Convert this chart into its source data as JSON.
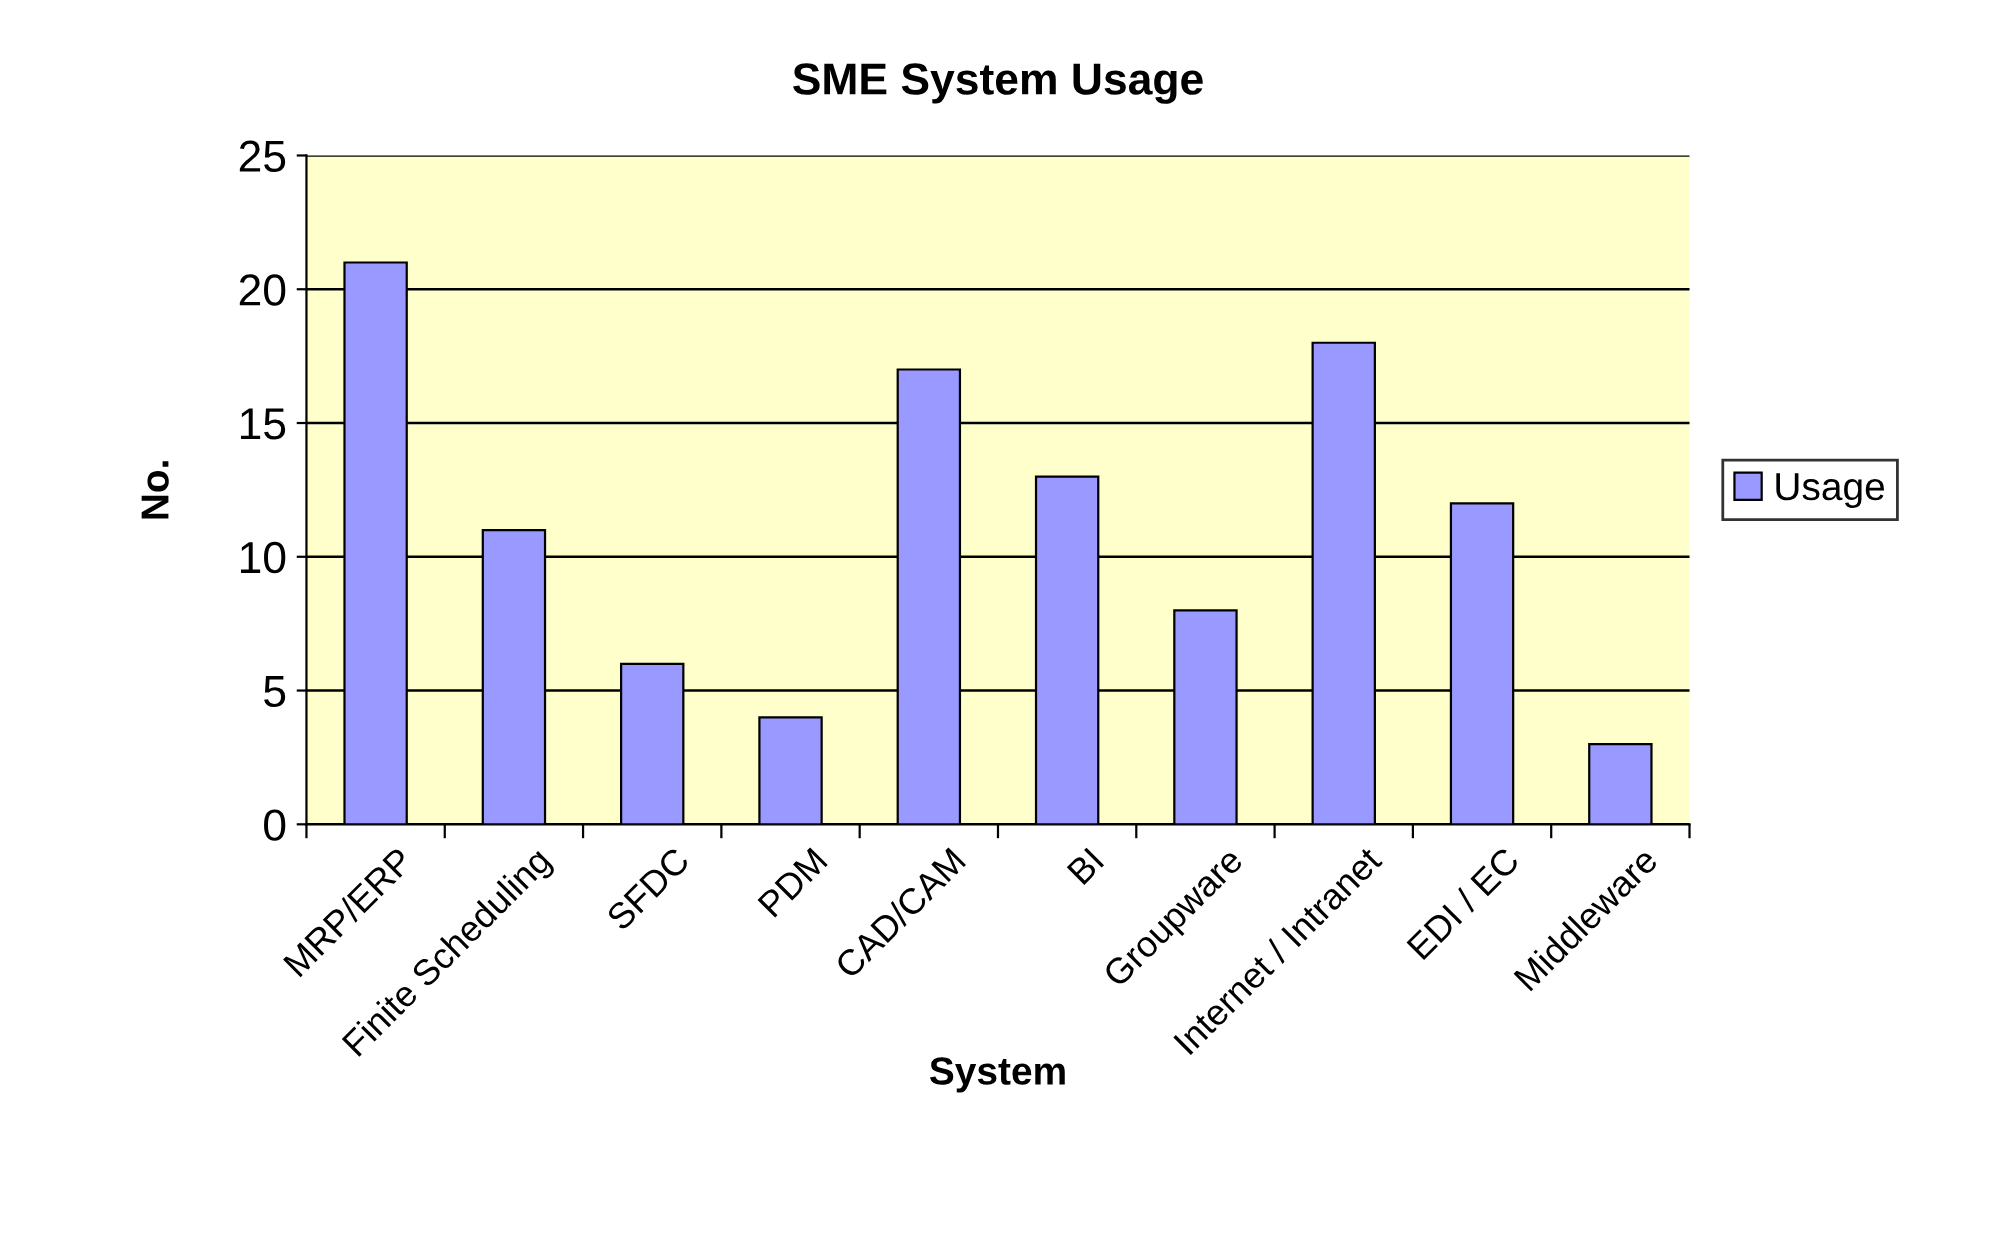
{
  "chart_data": {
    "type": "bar",
    "title": "SME System Usage",
    "xlabel": "System",
    "ylabel": "No.",
    "categories": [
      "MRP/ERP",
      "Finite Scheduling",
      "SFDC",
      "PDM",
      "CAD/CAM",
      "BI",
      "Groupware",
      "Internet / Intranet",
      "EDI / EC",
      "Middleware"
    ],
    "series": [
      {
        "name": "Usage",
        "color": "#9999ff",
        "values": [
          21,
          11,
          6,
          4,
          17,
          13,
          8,
          18,
          12,
          3
        ]
      }
    ],
    "ylim": [
      0,
      25
    ],
    "yticks": [
      0,
      5,
      10,
      15,
      20,
      25
    ],
    "grid": "y",
    "legend": "right"
  }
}
